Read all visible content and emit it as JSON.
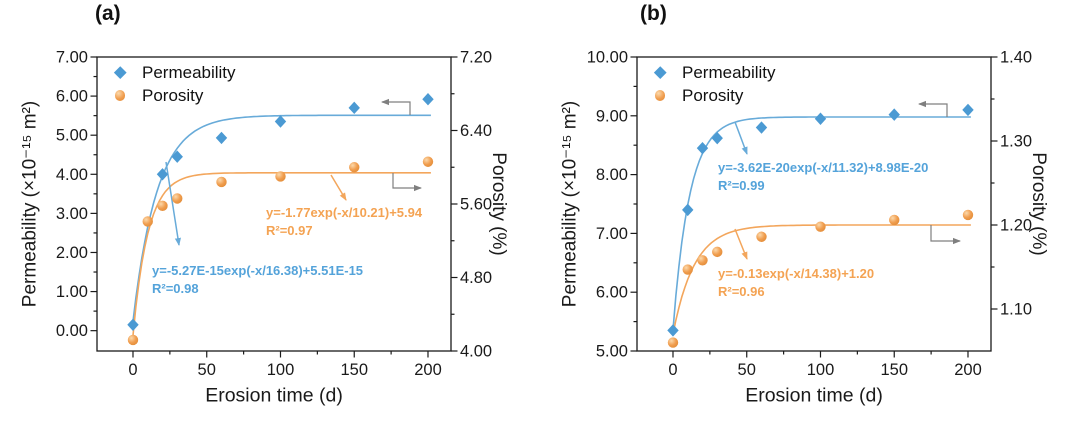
{
  "colors": {
    "permeability": "#4b9ad3",
    "permeability_line": "#68abd9",
    "porosity": "#f09d4e",
    "porosity_line": "#f3a65c",
    "porosity_highlight": "#fcd9ab",
    "porosity_shadow": "#e08a35",
    "annotation_blue": "#54a3da",
    "annotation_orange": "#f4a353",
    "axis": "#1a1a1a",
    "pointer_gray": "#7f7f7f"
  },
  "legend": {
    "items": [
      {
        "label": "Permeability",
        "marker": "diamond"
      },
      {
        "label": "Porosity",
        "marker": "sphere"
      }
    ]
  },
  "chart_data": [
    {
      "type": "scatter",
      "panel_label": "(a)",
      "x_axis": {
        "label": "Erosion time (d)",
        "range": [
          -24.4,
          215.6
        ],
        "ticks": [
          0,
          50,
          100,
          150,
          200
        ],
        "tick_labels": [
          "0",
          "50",
          "100",
          "150",
          "200"
        ],
        "minor_ticks": [
          25,
          75,
          125,
          175
        ]
      },
      "left_axis": {
        "label": "Permeability (×10⁻¹⁵ m²)",
        "range": [
          -0.52,
          7.0
        ],
        "ticks": [
          0,
          1,
          2,
          3,
          4,
          5,
          6,
          7
        ],
        "tick_labels": [
          "0.00",
          "1.00",
          "2.00",
          "3.00",
          "4.00",
          "5.00",
          "6.00",
          "7.00"
        ],
        "minor_ticks": [
          0.5,
          1.5,
          2.5,
          3.5,
          4.5,
          5.5,
          6.5
        ]
      },
      "right_axis": {
        "label": "Porosity (%)",
        "range": [
          4.0,
          7.2
        ],
        "ticks": [
          4.0,
          4.8,
          5.6,
          6.4,
          7.2
        ],
        "tick_labels": [
          "4.00",
          "4.80",
          "5.60",
          "6.40",
          "7.20"
        ],
        "minor_ticks": [
          4.4,
          5.2,
          6.0,
          6.8
        ]
      },
      "series": [
        {
          "name": "Permeability",
          "axis": "left",
          "marker": "diamond",
          "x": [
            0,
            20,
            30,
            60,
            100,
            150,
            200
          ],
          "y": [
            0.15,
            4.0,
            4.45,
            4.93,
            5.35,
            5.7,
            5.92
          ]
        },
        {
          "name": "Porosity",
          "axis": "right",
          "marker": "sphere",
          "x": [
            0,
            10,
            20,
            30,
            60,
            100,
            150,
            200
          ],
          "y": [
            4.12,
            5.41,
            5.58,
            5.66,
            5.84,
            5.9,
            6.0,
            6.06
          ]
        }
      ],
      "fits": [
        {
          "series": "Permeability",
          "axis": "left",
          "y0": 5.51,
          "amp": -5.27,
          "tau": 16.38,
          "x_range": [
            0,
            202
          ],
          "equation": "y=-5.27E-15exp(-x/16.38)+5.51E-15",
          "r2": "R²=0.98"
        },
        {
          "series": "Porosity",
          "axis": "right",
          "y0": 5.94,
          "amp": -1.77,
          "tau": 10.21,
          "x_range": [
            0,
            202
          ],
          "equation": "y=-1.77exp(-x/10.21)+5.94",
          "r2": "R²=0.97"
        }
      ],
      "annotation_arrows": [
        {
          "series": "Permeability",
          "from": [
            166,
            162
          ],
          "to": [
            179,
            245
          ]
        },
        {
          "series": "Porosity",
          "from": [
            331,
            175
          ],
          "to": [
            346,
            200
          ]
        }
      ],
      "axis_arrows": [
        {
          "series": "Permeability",
          "points": [
            [
              410,
              115
            ],
            [
              410,
              102
            ],
            [
              382,
              102
            ]
          ]
        },
        {
          "series": "Porosity",
          "points": [
            [
              393,
              173
            ],
            [
              393,
              188
            ],
            [
              421,
              188
            ]
          ]
        }
      ]
    },
    {
      "type": "scatter",
      "panel_label": "(b)",
      "x_axis": {
        "label": "Erosion time (d)",
        "range": [
          -24.4,
          215.6
        ],
        "ticks": [
          0,
          50,
          100,
          150,
          200
        ],
        "tick_labels": [
          "0",
          "50",
          "100",
          "150",
          "200"
        ],
        "minor_ticks": [
          25,
          75,
          125,
          175
        ]
      },
      "left_axis": {
        "label": "Permeability (×10⁻¹⁵ m²)",
        "range": [
          5.0,
          10.0
        ],
        "ticks": [
          5,
          6,
          7,
          8,
          9,
          10
        ],
        "tick_labels": [
          "5.00",
          "6.00",
          "7.00",
          "8.00",
          "9.00",
          "10.00"
        ],
        "minor_ticks": [
          5.5,
          6.5,
          7.5,
          8.5,
          9.5
        ]
      },
      "right_axis": {
        "label": "Porosity (%)",
        "range": [
          1.05,
          1.4
        ],
        "ticks": [
          1.1,
          1.2,
          1.3,
          1.4
        ],
        "tick_labels": [
          "1.10",
          "1.20",
          "1.30",
          "1.40"
        ],
        "minor_ticks": [
          1.15,
          1.25,
          1.35
        ]
      },
      "series": [
        {
          "name": "Permeability",
          "axis": "left",
          "marker": "diamond",
          "x": [
            0,
            10,
            20,
            30,
            60,
            100,
            150,
            200
          ],
          "y": [
            5.35,
            7.4,
            8.45,
            8.62,
            8.8,
            8.95,
            9.02,
            9.1
          ]
        },
        {
          "name": "Porosity",
          "axis": "right",
          "marker": "sphere",
          "x": [
            0,
            10,
            20,
            30,
            60,
            100,
            150,
            200
          ],
          "y": [
            1.06,
            1.147,
            1.158,
            1.168,
            1.186,
            1.198,
            1.206,
            1.212
          ]
        }
      ],
      "fits": [
        {
          "series": "Permeability",
          "axis": "left",
          "y0": 8.98,
          "amp": -3.62,
          "tau": 11.32,
          "x_range": [
            0,
            202
          ],
          "equation": "y=-3.62E-20exp(-x/11.32)+8.98E-20",
          "r2": "R²=0.99"
        },
        {
          "series": "Porosity",
          "axis": "right",
          "y0": 1.2,
          "amp": -0.13,
          "tau": 14.38,
          "x_range": [
            0,
            202
          ],
          "equation": "y=-0.13exp(-x/14.38)+1.20",
          "r2": "R²=0.96"
        }
      ],
      "annotation_arrows": [
        {
          "series": "Permeability",
          "from": [
            195,
            122
          ],
          "to": [
            207,
            154
          ]
        },
        {
          "series": "Porosity",
          "from": [
            195,
            229
          ],
          "to": [
            207,
            259
          ]
        }
      ],
      "axis_arrows": [
        {
          "series": "Permeability",
          "points": [
            [
              407,
              117
            ],
            [
              407,
              104
            ],
            [
              379,
              104
            ]
          ]
        },
        {
          "series": "Porosity",
          "points": [
            [
              391,
              225
            ],
            [
              391,
              241
            ],
            [
              420,
              241
            ]
          ]
        }
      ]
    }
  ]
}
